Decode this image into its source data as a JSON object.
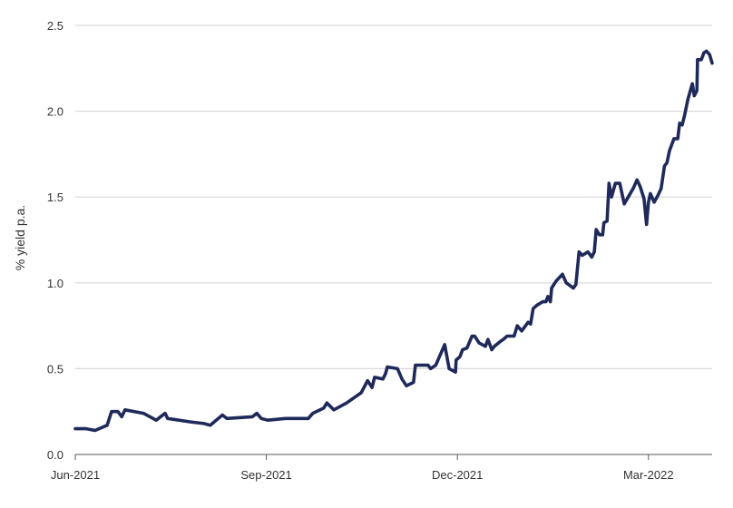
{
  "chart_data": {
    "type": "line",
    "title": "",
    "xlabel": "",
    "ylabel": "% yield p.a.",
    "x_unit": "months since Jun-2021",
    "xlim": [
      0,
      10
    ],
    "ylim": [
      0,
      2.5
    ],
    "grid": true,
    "x_ticks": [
      {
        "value": 0,
        "label": "Jun-2021"
      },
      {
        "value": 3,
        "label": "Sep-2021"
      },
      {
        "value": 6,
        "label": "Dec-2021"
      },
      {
        "value": 9,
        "label": "Mar-2022"
      }
    ],
    "y_ticks": [
      {
        "value": 0,
        "label": "0.0"
      },
      {
        "value": 0.5,
        "label": "0.5"
      },
      {
        "value": 1,
        "label": "1.0"
      },
      {
        "value": 1.5,
        "label": "1.5"
      },
      {
        "value": 2,
        "label": "2.0"
      },
      {
        "value": 2.5,
        "label": "2.5"
      }
    ],
    "series": [
      {
        "name": "yield",
        "color": "#1f2a5a",
        "x": [
          0,
          0.17,
          0.31,
          0.5,
          0.57,
          0.67,
          0.73,
          0.78,
          1.07,
          1.27,
          1.41,
          1.45,
          1.81,
          2.02,
          2.12,
          2.31,
          2.38,
          2.78,
          2.85,
          2.92,
          3.02,
          3.3,
          3.66,
          3.73,
          3.9,
          3.95,
          4.06,
          4.26,
          4.49,
          4.59,
          4.66,
          4.7,
          4.83,
          4.87,
          4.9,
          5.06,
          5.13,
          5.2,
          5.31,
          5.34,
          5.54,
          5.58,
          5.66,
          5.8,
          5.87,
          5.97,
          5.98,
          6.04,
          6.08,
          6.15,
          6.23,
          6.27,
          6.34,
          6.44,
          6.48,
          6.54,
          6.58,
          6.68,
          6.72,
          6.78,
          6.89,
          6.94,
          7.01,
          7.11,
          7.15,
          7.19,
          7.25,
          7.34,
          7.39,
          7.42,
          7.46,
          7.48,
          7.55,
          7.65,
          7.71,
          7.82,
          7.86,
          7.91,
          7.96,
          8.05,
          8.11,
          8.15,
          8.18,
          8.23,
          8.28,
          8.3,
          8.35,
          8.38,
          8.42,
          8.48,
          8.55,
          8.62,
          8.76,
          8.82,
          8.87,
          8.93,
          8.97,
          9.0,
          9.03,
          9.09,
          9.15,
          9.2,
          9.25,
          9.29,
          9.33,
          9.4,
          9.46,
          9.49,
          9.53,
          9.57,
          9.62,
          9.69,
          9.72,
          9.76,
          9.77,
          9.83,
          9.87,
          9.91,
          9.96,
          10.0
        ],
        "values": [
          0.15,
          0.15,
          0.14,
          0.17,
          0.25,
          0.25,
          0.22,
          0.26,
          0.24,
          0.2,
          0.24,
          0.21,
          0.19,
          0.18,
          0.17,
          0.23,
          0.21,
          0.22,
          0.24,
          0.21,
          0.2,
          0.21,
          0.21,
          0.24,
          0.27,
          0.3,
          0.26,
          0.3,
          0.36,
          0.43,
          0.39,
          0.45,
          0.44,
          0.47,
          0.51,
          0.5,
          0.44,
          0.4,
          0.42,
          0.52,
          0.52,
          0.5,
          0.52,
          0.64,
          0.5,
          0.48,
          0.55,
          0.57,
          0.61,
          0.62,
          0.69,
          0.69,
          0.65,
          0.63,
          0.67,
          0.61,
          0.63,
          0.66,
          0.67,
          0.69,
          0.69,
          0.75,
          0.72,
          0.77,
          0.76,
          0.85,
          0.87,
          0.89,
          0.89,
          0.92,
          0.89,
          0.97,
          1.01,
          1.05,
          1.0,
          0.97,
          0.99,
          1.18,
          1.16,
          1.18,
          1.15,
          1.18,
          1.31,
          1.28,
          1.28,
          1.35,
          1.36,
          1.58,
          1.5,
          1.58,
          1.58,
          1.46,
          1.55,
          1.6,
          1.56,
          1.49,
          1.34,
          1.47,
          1.52,
          1.47,
          1.51,
          1.55,
          1.68,
          1.7,
          1.77,
          1.84,
          1.84,
          1.93,
          1.92,
          1.98,
          2.07,
          2.16,
          2.09,
          2.12,
          2.3,
          2.3,
          2.34,
          2.35,
          2.33,
          2.28
        ]
      }
    ]
  }
}
